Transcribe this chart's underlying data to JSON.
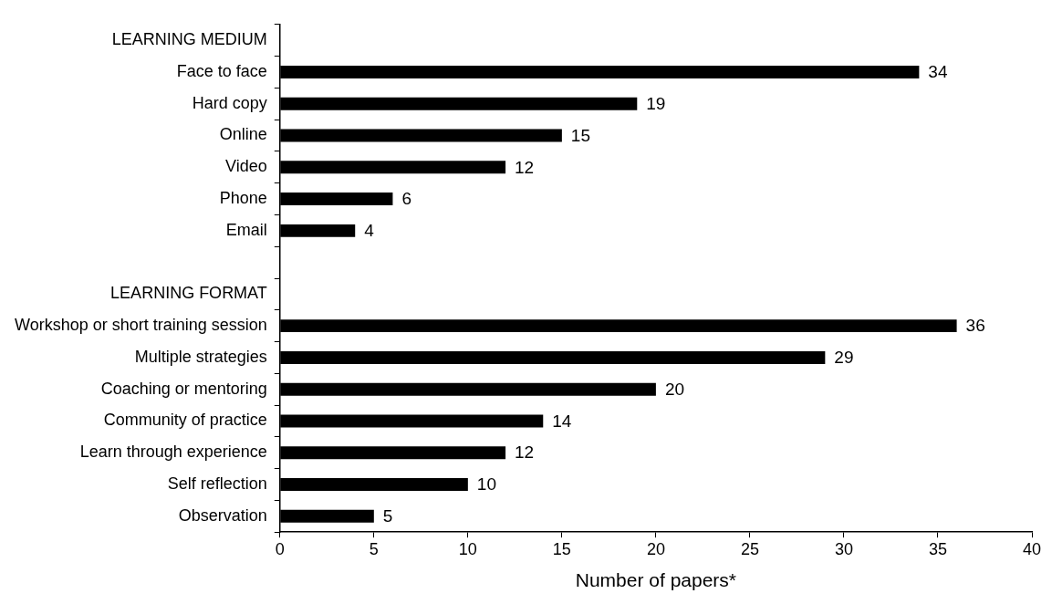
{
  "chart_data": {
    "type": "bar",
    "orientation": "horizontal",
    "xlabel": "Number of papers*",
    "categories": [
      "LEARNING MEDIUM",
      "Face to face",
      "Hard copy",
      "Online",
      "Video",
      "Phone",
      "Email",
      null,
      "LEARNING FORMAT",
      "Workshop or short training session",
      "Multiple strategies",
      "Coaching or mentoring",
      "Community of practice",
      "Learn through experience",
      "Self reflection",
      "Observation"
    ],
    "values": [
      null,
      34,
      19,
      15,
      12,
      6,
      4,
      null,
      null,
      36,
      29,
      20,
      14,
      12,
      10,
      5
    ],
    "color": "#000000",
    "xlim": [
      0,
      40
    ],
    "xticks": [
      0,
      5,
      10,
      15,
      20,
      25,
      30,
      35,
      40
    ],
    "grid": false,
    "legend": false,
    "data_labels": true
  }
}
